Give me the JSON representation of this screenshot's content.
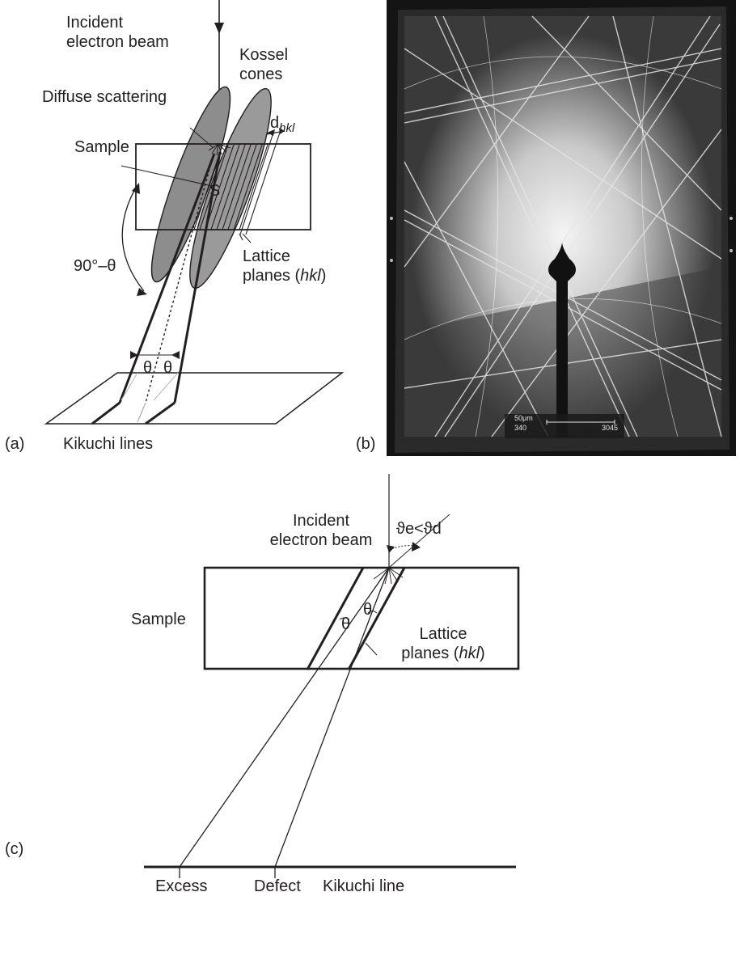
{
  "panel_a": {
    "tag": "(a)",
    "incident_beam": [
      "Incident",
      "electron beam"
    ],
    "kossel": [
      "Kossel",
      "cones"
    ],
    "diffuse": "Diffuse scattering",
    "sample": "Sample",
    "s_point": "S",
    "d_main": "d",
    "d_sub": "hkl",
    "angle": "90°–θ",
    "lattice": [
      "Lattice",
      "planes ("
    ],
    "hkl": "hkl",
    "close_paren": ")",
    "theta": "θ",
    "kikuchi": "Kikuchi lines"
  },
  "panel_b": {
    "tag": "(b)",
    "scale_label": "50μm",
    "scale_left": "340",
    "scale_right": "3045"
  },
  "panel_c": {
    "tag": "(c)",
    "incident_beam": [
      "Incident",
      "electron beam"
    ],
    "angle_rel": "ϑe<ϑd",
    "sample": "Sample",
    "theta": "θ",
    "lattice": [
      "Lattice",
      "planes ("
    ],
    "hkl": "hkl",
    "close_paren": ")",
    "excess": "Excess",
    "defect": "Defect",
    "kikuchi": "Kikuchi line"
  }
}
